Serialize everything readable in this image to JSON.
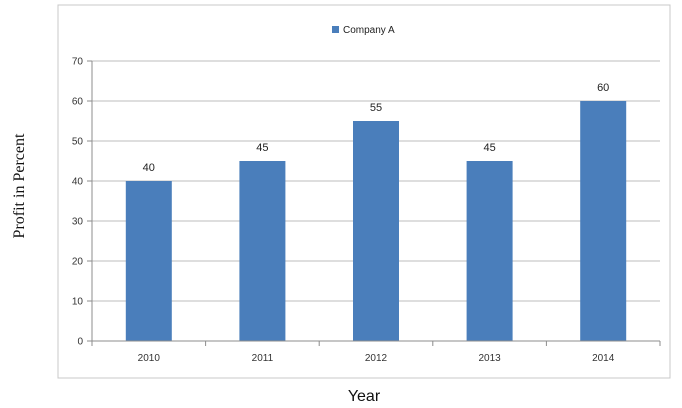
{
  "chart_data": {
    "type": "bar",
    "title": "",
    "xlabel": "Year",
    "ylabel": "Profit in Percent",
    "categories": [
      "2010",
      "2011",
      "2012",
      "2013",
      "2014"
    ],
    "series": [
      {
        "name": "Company A",
        "values": [
          40,
          45,
          55,
          45,
          60
        ],
        "color": "#4a7ebb"
      }
    ],
    "ylim": [
      0,
      70
    ],
    "yticks": [
      0,
      10,
      20,
      30,
      40,
      50,
      60,
      70
    ],
    "grid": true,
    "legend_position": "top-center",
    "data_labels": true
  }
}
